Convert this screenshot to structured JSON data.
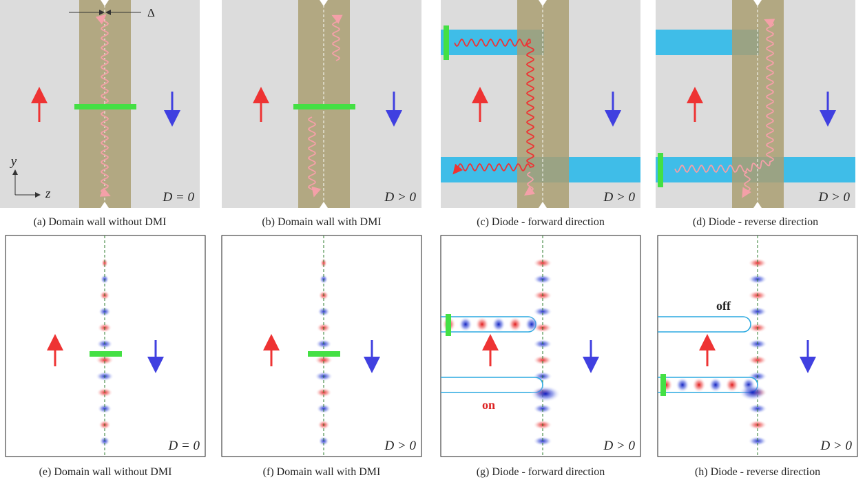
{
  "panels": [
    {
      "caption": "(a) Domain wall without DMI",
      "label": "D = 0"
    },
    {
      "caption": "(b) Domain wall with DMI",
      "label": "D > 0"
    },
    {
      "caption": "(c) Diode - forward direction",
      "label": "D > 0"
    },
    {
      "caption": "(d) Diode - reverse direction",
      "label": "D > 0"
    },
    {
      "caption": "(e) Domain wall without DMI",
      "label": "D = 0"
    },
    {
      "caption": "(f) Domain wall with DMI",
      "label": "D > 0"
    },
    {
      "caption": "(g) Diode - forward direction",
      "label": "D > 0"
    },
    {
      "caption": "(h) Diode - reverse direction",
      "label": "D > 0"
    }
  ],
  "delta": "Δ",
  "axis_y": "y",
  "axis_z": "z",
  "on": "on",
  "off": "off"
}
